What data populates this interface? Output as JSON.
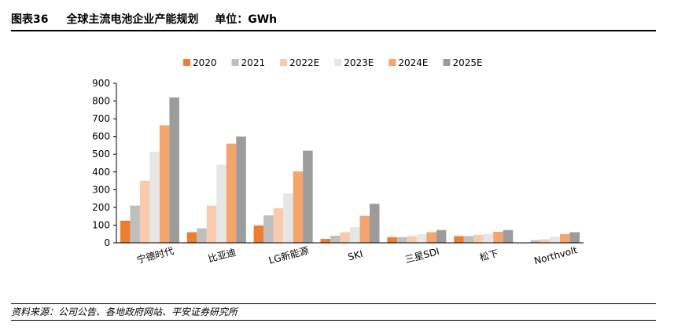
{
  "header": {
    "figure_number": "图表36",
    "title": "全球主流电池企业产能规划",
    "unit": "单位：GWh"
  },
  "footer": {
    "source": "资料来源：公司公告、各地政府网站、平安证券研究所"
  },
  "chart_data": {
    "type": "bar",
    "categories": [
      "宁德时代",
      "比亚迪",
      "LG新能源",
      "SKI",
      "三星SDI",
      "松下",
      "Northvolt"
    ],
    "series": [
      {
        "name": "2020",
        "color": "#ED7D31",
        "values": [
          125,
          60,
          98,
          22,
          32,
          38,
          0
        ]
      },
      {
        "name": "2021",
        "color": "#BFBFBF",
        "values": [
          210,
          82,
          155,
          40,
          32,
          38,
          15
        ]
      },
      {
        "name": "2022E",
        "color": "#F8CBAD",
        "values": [
          350,
          210,
          195,
          60,
          38,
          45,
          20
        ]
      },
      {
        "name": "2023E",
        "color": "#E7E6E6",
        "values": [
          515,
          440,
          280,
          88,
          48,
          50,
          35
        ]
      },
      {
        "name": "2024E",
        "color": "#F4A46C",
        "values": [
          663,
          560,
          403,
          152,
          60,
          62,
          50
        ]
      },
      {
        "name": "2025E",
        "color": "#9C9C9C",
        "values": [
          820,
          600,
          520,
          220,
          72,
          72,
          60
        ]
      }
    ],
    "y_ticks": [
      "0",
      "100",
      "200",
      "300",
      "400",
      "500",
      "600",
      "700",
      "800",
      "900"
    ],
    "ylim": [
      0,
      900
    ],
    "grid": false,
    "legend_position": "top-center"
  }
}
